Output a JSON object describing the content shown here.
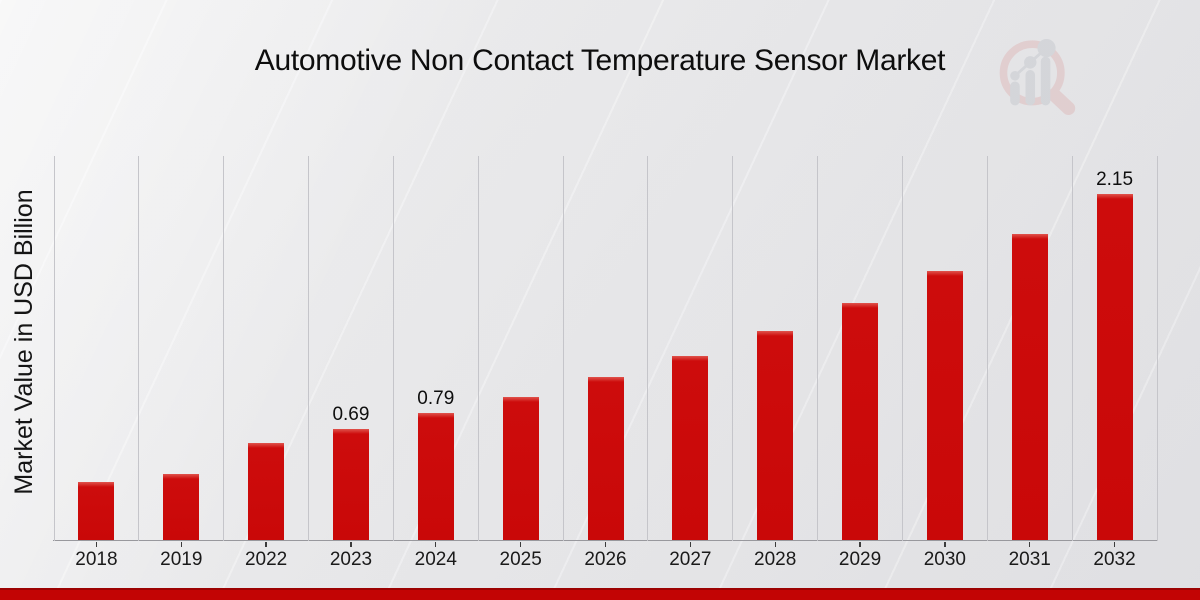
{
  "page": {
    "title": "Automotive Non Contact Temperature Sensor Market",
    "y_axis_label": "Market Value in USD Billion",
    "logo_icon": "magnifier-bar-chart-logo-icon",
    "colors": {
      "bar_red": "#c90808",
      "footer_red": "#c20404",
      "footer_dark_red": "#9c0202",
      "background_gray": "#eaeaec",
      "gridline_gray": "#c5c5ca",
      "axis_gray": "#98989d",
      "text_black": "#111111"
    }
  },
  "chart_data": {
    "type": "bar",
    "title": "Automotive Non Contact Temperature Sensor Market",
    "xlabel": "",
    "ylabel": "Market Value in USD Billion",
    "categories": [
      "2018",
      "2019",
      "2022",
      "2023",
      "2024",
      "2025",
      "2026",
      "2027",
      "2028",
      "2029",
      "2030",
      "2031",
      "2032"
    ],
    "values": [
      0.36,
      0.41,
      0.6,
      0.69,
      0.79,
      0.89,
      1.01,
      1.14,
      1.3,
      1.47,
      1.67,
      1.9,
      2.15
    ],
    "value_labels": [
      "",
      "",
      "",
      "0.69",
      "0.79",
      "",
      "",
      "",
      "",
      "",
      "",
      "",
      "2.15"
    ],
    "ylim": [
      0,
      2.39
    ],
    "unit": "USD Billion",
    "bar_color": "#c90808",
    "grid": "vertical-column-separators",
    "legend": "none",
    "y_axis_ticks_visible": false
  }
}
